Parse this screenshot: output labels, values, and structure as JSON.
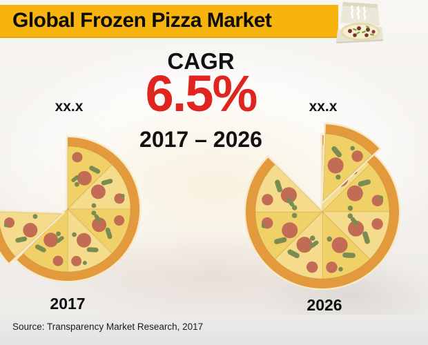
{
  "header": {
    "title": "Global Frozen Pizza Market"
  },
  "icons": {
    "pizza_box_icon": "open-pizza-box-with-steam"
  },
  "center": {
    "cagr_label": "CAGR",
    "cagr_value": "6.5%",
    "period": "2017 – 2026"
  },
  "pizzas": {
    "left": {
      "value_label": "xx.x",
      "year_label": "2017"
    },
    "right": {
      "value_label": "xx.x",
      "year_label": "2026"
    }
  },
  "footer": {
    "source": "Source: Transparency Market Research, 2017"
  },
  "colors": {
    "header_bg": "#F7B30E",
    "accent_red": "#E02520",
    "text_black": "#111111",
    "crust": "#E29A3C",
    "crust_rim": "#F7EACA",
    "cheese_light": "#F5DC8C",
    "cheese_mid": "#F0D168",
    "pepperoni": "#C26C55",
    "olive_green": "#7B8C52"
  },
  "chart_data": {
    "type": "pie",
    "title": "Global Frozen Pizza Market",
    "subtitle": "CAGR 6.5% (2017 – 2026)",
    "cagr_pct": 6.5,
    "period": "2017 – 2026",
    "categories": [
      "2017",
      "2026"
    ],
    "series": [
      {
        "name": "2017",
        "market_value": "xx.x",
        "visual": "pizza missing one quarter, slice separated lower-left"
      },
      {
        "name": "2026",
        "market_value": "xx.x",
        "visual": "larger pizza with one slice pulled out at top"
      }
    ],
    "source": "Source: Transparency Market Research, 2017"
  }
}
